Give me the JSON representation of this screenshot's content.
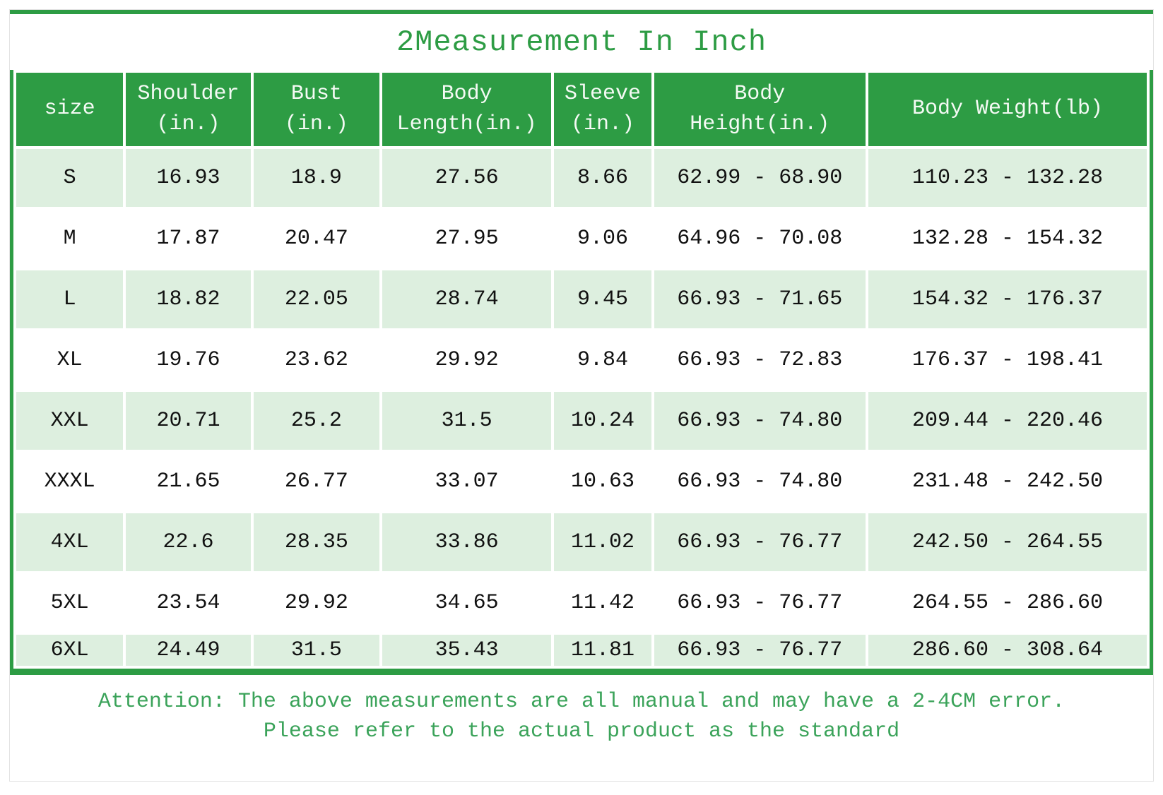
{
  "title": "2Measurement In Inch",
  "colors": {
    "primary_green": "#2d9c44",
    "row_highlight_green": "#ddefdf",
    "note_text_green": "#3ba35a",
    "header_text": "#f4faf4",
    "cell_text": "#111111"
  },
  "table": {
    "columns": [
      "size",
      "Shoulder\n(in.)",
      "Bust\n(in.)",
      "Body\nLength(in.)",
      "Sleeve\n(in.)",
      "Body\nHeight(in.)",
      "Body Weight(lb)"
    ],
    "column_widths_pct": [
      9.6,
      11.2,
      11.3,
      15.2,
      8.7,
      19.0,
      25.0
    ],
    "rows": [
      [
        "S",
        "16.93",
        "18.9",
        "27.56",
        "8.66",
        "62.99 - 68.90",
        "110.23 - 132.28"
      ],
      [
        "M",
        "17.87",
        "20.47",
        "27.95",
        "9.06",
        "64.96 - 70.08",
        "132.28 - 154.32"
      ],
      [
        "L",
        "18.82",
        "22.05",
        "28.74",
        "9.45",
        "66.93 - 71.65",
        "154.32 - 176.37"
      ],
      [
        "XL",
        "19.76",
        "23.62",
        "29.92",
        "9.84",
        "66.93 - 72.83",
        "176.37 - 198.41"
      ],
      [
        "XXL",
        "20.71",
        "25.2",
        "31.5",
        "10.24",
        "66.93 - 74.80",
        "209.44 - 220.46"
      ],
      [
        "XXXL",
        "21.65",
        "26.77",
        "33.07",
        "10.63",
        "66.93 - 74.80",
        "231.48 - 242.50"
      ],
      [
        "4XL",
        "22.6",
        "28.35",
        "33.86",
        "11.02",
        "66.93 - 76.77",
        "242.50 - 264.55"
      ],
      [
        "5XL",
        "23.54",
        "29.92",
        "34.65",
        "11.42",
        "66.93 - 76.77",
        "264.55 - 286.60"
      ],
      [
        "6XL",
        "24.49",
        "31.5",
        "35.43",
        "11.81",
        "66.93 - 76.77",
        "286.60 - 308.64"
      ]
    ]
  },
  "note": {
    "line1": "Attention: The above measurements are all manual and may have a 2-4CM error.",
    "line2": "Please refer to the actual product as the standard"
  }
}
